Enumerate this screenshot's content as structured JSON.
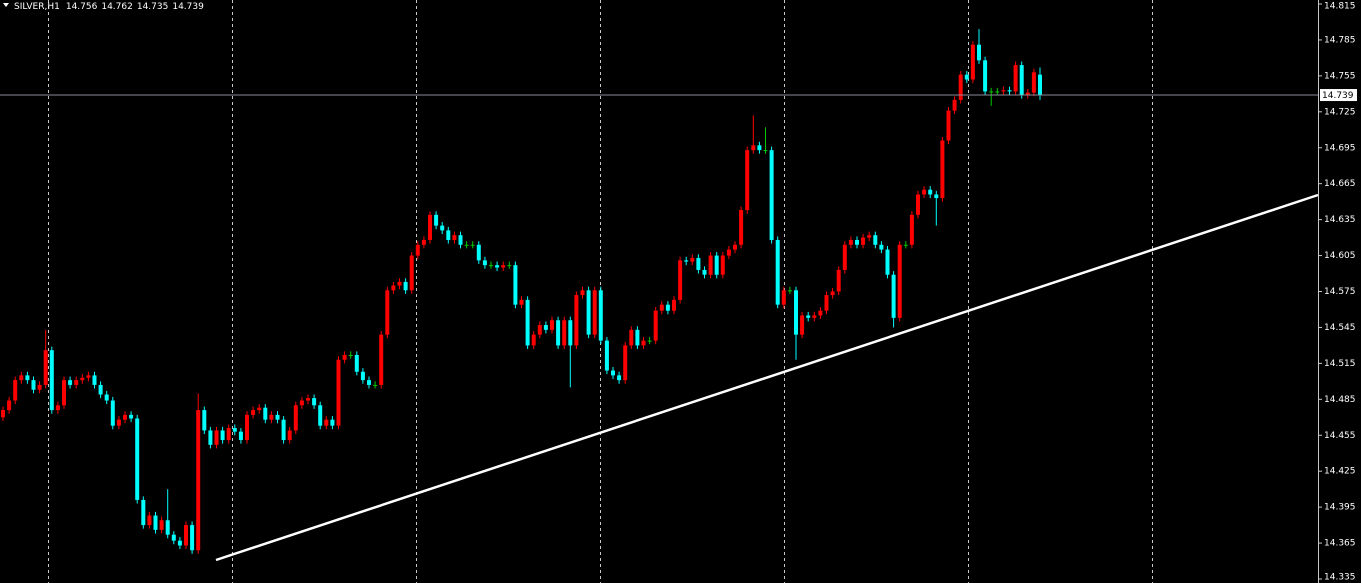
{
  "chart_data": {
    "type": "candlestick",
    "symbol": "SILVER,H1",
    "ylim": [
      14.335,
      14.815
    ],
    "yticks": [
      14.815,
      14.785,
      14.755,
      14.725,
      14.695,
      14.665,
      14.635,
      14.605,
      14.575,
      14.545,
      14.515,
      14.485,
      14.455,
      14.425,
      14.395,
      14.365,
      14.335
    ],
    "up_color": "#ff0000",
    "down_color": "#00ffff",
    "doji_color": "#00c800",
    "candles": {
      "open": [
        14.47,
        14.476,
        14.484,
        14.501,
        14.505,
        14.501,
        14.493,
        14.497,
        14.526,
        14.476,
        14.48,
        14.501,
        14.497,
        14.501,
        14.503,
        14.505,
        14.497,
        14.489,
        14.484,
        14.463,
        14.468,
        14.472,
        14.469,
        14.401,
        14.38,
        14.388,
        14.376,
        14.384,
        14.372,
        14.367,
        14.363,
        14.38,
        14.359,
        14.476,
        14.459,
        14.447,
        14.459,
        14.451,
        14.461,
        14.458,
        14.451,
        14.472,
        14.476,
        14.478,
        14.468,
        14.472,
        14.468,
        14.451,
        14.459,
        14.48,
        14.484,
        14.486,
        14.48,
        14.463,
        14.468,
        14.463,
        14.518,
        14.522,
        14.522,
        14.508,
        14.501,
        14.497,
        14.497,
        14.539,
        14.576,
        14.58,
        14.583,
        14.576,
        14.605,
        14.614,
        14.618,
        14.639,
        14.63,
        14.626,
        14.618,
        14.622,
        14.614,
        14.614,
        14.614,
        14.601,
        14.597,
        14.597,
        14.595,
        14.597,
        14.597,
        14.564,
        14.568,
        14.53,
        14.539,
        14.547,
        14.543,
        14.551,
        14.53,
        14.551,
        14.53,
        14.572,
        14.576,
        14.539,
        14.576,
        14.534,
        14.509,
        14.505,
        14.501,
        14.53,
        14.543,
        14.53,
        14.534,
        14.534,
        14.559,
        14.564,
        14.559,
        14.568,
        14.601,
        14.6,
        14.603,
        14.593,
        14.589,
        14.605,
        14.589,
        14.605,
        14.61,
        14.614,
        14.643,
        14.693,
        14.697,
        14.693,
        14.693,
        14.618,
        14.564,
        14.576,
        14.576,
        14.539,
        14.555,
        14.553,
        14.555,
        14.559,
        14.572,
        14.575,
        14.593,
        14.614,
        14.618,
        14.614,
        14.62,
        14.622,
        14.614,
        14.61,
        14.589,
        14.553,
        14.614,
        14.614,
        14.639,
        14.656,
        14.66,
        14.656,
        14.653,
        14.701,
        14.726,
        14.735,
        14.756,
        14.752,
        14.781,
        14.768,
        14.742,
        14.742,
        14.742,
        14.743,
        14.742,
        14.764,
        14.739,
        14.741,
        14.756
      ],
      "high": [
        14.479,
        14.487,
        14.504,
        14.508,
        14.508,
        14.504,
        14.5,
        14.543,
        14.529,
        14.483,
        14.504,
        14.504,
        14.504,
        14.506,
        14.508,
        14.508,
        14.5,
        14.492,
        14.487,
        14.471,
        14.475,
        14.475,
        14.472,
        14.404,
        14.391,
        14.391,
        14.387,
        14.41,
        14.375,
        14.37,
        14.383,
        14.383,
        14.49,
        14.479,
        14.462,
        14.462,
        14.462,
        14.464,
        14.464,
        14.461,
        14.475,
        14.479,
        14.481,
        14.481,
        14.475,
        14.475,
        14.471,
        14.462,
        14.483,
        14.487,
        14.489,
        14.489,
        14.483,
        14.471,
        14.471,
        14.521,
        14.525,
        14.525,
        14.525,
        14.511,
        14.504,
        14.5,
        14.542,
        14.579,
        14.583,
        14.586,
        14.586,
        14.608,
        14.617,
        14.621,
        14.642,
        14.642,
        14.633,
        14.629,
        14.625,
        14.625,
        14.617,
        14.617,
        14.617,
        14.604,
        14.6,
        14.6,
        14.6,
        14.6,
        14.6,
        14.571,
        14.571,
        14.542,
        14.55,
        14.55,
        14.554,
        14.554,
        14.554,
        14.554,
        14.575,
        14.579,
        14.579,
        14.579,
        14.579,
        14.537,
        14.512,
        14.508,
        14.533,
        14.546,
        14.546,
        14.537,
        14.537,
        14.562,
        14.567,
        14.567,
        14.571,
        14.604,
        14.604,
        14.606,
        14.606,
        14.596,
        14.608,
        14.608,
        14.608,
        14.613,
        14.617,
        14.646,
        14.696,
        14.722,
        14.7,
        14.712,
        14.696,
        14.621,
        14.579,
        14.579,
        14.579,
        14.558,
        14.558,
        14.558,
        14.562,
        14.575,
        14.578,
        14.596,
        14.617,
        14.621,
        14.621,
        14.623,
        14.625,
        14.625,
        14.617,
        14.613,
        14.592,
        14.617,
        14.617,
        14.642,
        14.659,
        14.663,
        14.663,
        14.659,
        14.704,
        14.729,
        14.738,
        14.759,
        14.759,
        14.784,
        14.794,
        14.771,
        14.745,
        14.745,
        14.746,
        14.746,
        14.767,
        14.767,
        14.744,
        14.761,
        14.762
      ],
      "low": [
        14.467,
        14.473,
        14.481,
        14.498,
        14.498,
        14.49,
        14.49,
        14.494,
        14.473,
        14.473,
        14.477,
        14.494,
        14.494,
        14.498,
        14.5,
        14.494,
        14.486,
        14.481,
        14.46,
        14.46,
        14.465,
        14.466,
        14.398,
        14.377,
        14.377,
        14.373,
        14.373,
        14.369,
        14.364,
        14.36,
        14.36,
        14.356,
        14.356,
        14.456,
        14.444,
        14.444,
        14.448,
        14.448,
        14.455,
        14.448,
        14.448,
        14.469,
        14.473,
        14.465,
        14.465,
        14.465,
        14.448,
        14.448,
        14.456,
        14.477,
        14.481,
        14.477,
        14.46,
        14.46,
        14.46,
        14.46,
        14.515,
        14.519,
        14.505,
        14.498,
        14.494,
        14.494,
        14.494,
        14.536,
        14.573,
        14.577,
        14.573,
        14.573,
        14.602,
        14.611,
        14.615,
        14.627,
        14.623,
        14.615,
        14.615,
        14.611,
        14.611,
        14.611,
        14.598,
        14.594,
        14.594,
        14.592,
        14.592,
        14.594,
        14.561,
        14.561,
        14.527,
        14.527,
        14.536,
        14.54,
        14.54,
        14.527,
        14.527,
        14.495,
        14.527,
        14.569,
        14.536,
        14.536,
        14.531,
        14.506,
        14.502,
        14.498,
        14.498,
        14.527,
        14.527,
        14.527,
        14.531,
        14.531,
        14.556,
        14.556,
        14.556,
        14.565,
        14.597,
        14.597,
        14.59,
        14.586,
        14.586,
        14.586,
        14.586,
        14.602,
        14.607,
        14.611,
        14.64,
        14.69,
        14.69,
        14.69,
        14.615,
        14.561,
        14.561,
        14.573,
        14.518,
        14.536,
        14.55,
        14.55,
        14.552,
        14.556,
        14.569,
        14.572,
        14.59,
        14.611,
        14.611,
        14.611,
        14.617,
        14.611,
        14.607,
        14.586,
        14.545,
        14.55,
        14.611,
        14.611,
        14.636,
        14.653,
        14.653,
        14.63,
        14.65,
        14.698,
        14.723,
        14.732,
        14.749,
        14.749,
        14.765,
        14.739,
        14.73,
        14.739,
        14.739,
        14.739,
        14.739,
        14.736,
        14.736,
        14.738,
        14.735
      ],
      "close": [
        14.476,
        14.484,
        14.501,
        14.505,
        14.501,
        14.493,
        14.497,
        14.526,
        14.476,
        14.48,
        14.501,
        14.497,
        14.501,
        14.503,
        14.505,
        14.497,
        14.489,
        14.484,
        14.463,
        14.468,
        14.472,
        14.469,
        14.401,
        14.38,
        14.388,
        14.376,
        14.384,
        14.372,
        14.367,
        14.363,
        14.38,
        14.359,
        14.476,
        14.459,
        14.447,
        14.459,
        14.451,
        14.461,
        14.458,
        14.451,
        14.472,
        14.476,
        14.478,
        14.468,
        14.472,
        14.468,
        14.451,
        14.459,
        14.48,
        14.484,
        14.486,
        14.48,
        14.463,
        14.468,
        14.463,
        14.518,
        14.522,
        14.522,
        14.508,
        14.501,
        14.497,
        14.497,
        14.539,
        14.576,
        14.58,
        14.583,
        14.576,
        14.605,
        14.614,
        14.618,
        14.639,
        14.63,
        14.626,
        14.618,
        14.622,
        14.614,
        14.614,
        14.614,
        14.601,
        14.597,
        14.597,
        14.595,
        14.597,
        14.597,
        14.564,
        14.568,
        14.53,
        14.539,
        14.547,
        14.543,
        14.551,
        14.53,
        14.551,
        14.53,
        14.572,
        14.576,
        14.539,
        14.576,
        14.534,
        14.509,
        14.505,
        14.501,
        14.53,
        14.543,
        14.53,
        14.534,
        14.534,
        14.559,
        14.564,
        14.559,
        14.568,
        14.601,
        14.6,
        14.603,
        14.593,
        14.589,
        14.605,
        14.589,
        14.605,
        14.61,
        14.614,
        14.643,
        14.693,
        14.697,
        14.693,
        14.693,
        14.618,
        14.564,
        14.576,
        14.576,
        14.539,
        14.555,
        14.553,
        14.555,
        14.559,
        14.572,
        14.575,
        14.593,
        14.614,
        14.618,
        14.614,
        14.62,
        14.622,
        14.614,
        14.61,
        14.589,
        14.553,
        14.614,
        14.614,
        14.639,
        14.656,
        14.66,
        14.656,
        14.653,
        14.701,
        14.726,
        14.735,
        14.756,
        14.752,
        14.781,
        14.768,
        14.742,
        14.742,
        14.742,
        14.743,
        14.742,
        14.764,
        14.739,
        14.741,
        14.758,
        14.739
      ]
    }
  }
}
